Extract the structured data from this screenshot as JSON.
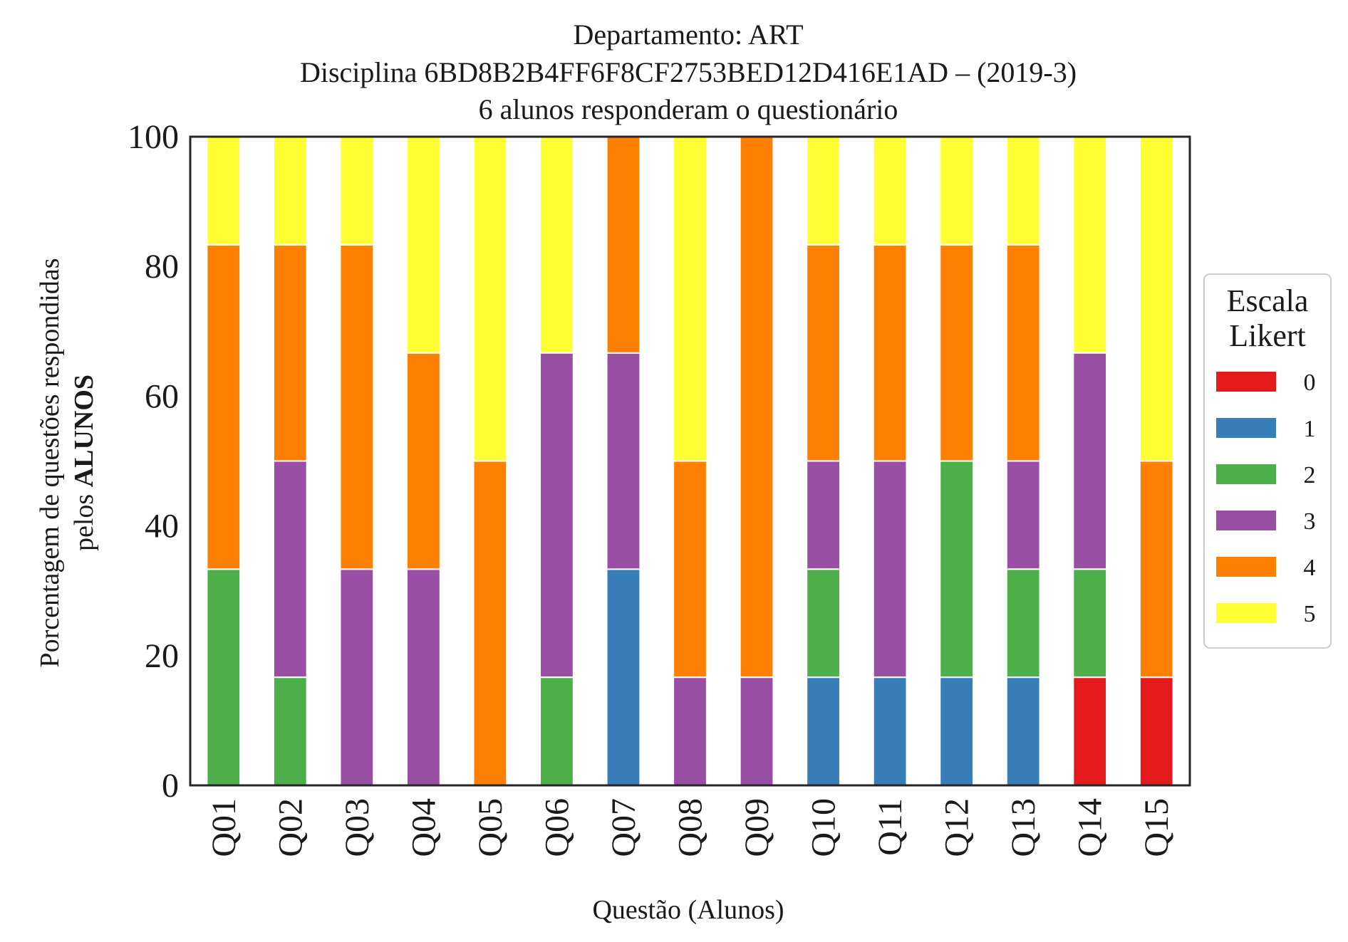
{
  "chart_data": {
    "type": "bar",
    "stacked": true,
    "title": "Departamento: ART",
    "subtitle_lines": [
      "Disciplina 6BD8B2B4FF6F8CF2753BED12D416E1AD – (2019-3)",
      "6 alunos responderam o questionário"
    ],
    "xlabel": "Questão (Alunos)",
    "ylabel_line1": "Porcentagem de questões respondidas",
    "ylabel_line2_prefix": "pelos ",
    "ylabel_line2_bold": "ALUNOS",
    "ylim": [
      0,
      100
    ],
    "yticks": [
      "0",
      "20",
      "40",
      "60",
      "80",
      "100"
    ],
    "categories": [
      "Q01",
      "Q02",
      "Q03",
      "Q04",
      "Q05",
      "Q06",
      "Q07",
      "Q08",
      "Q09",
      "Q10",
      "Q11",
      "Q12",
      "Q13",
      "Q14",
      "Q15"
    ],
    "legend": {
      "title_lines": [
        "Escala",
        "Likert"
      ],
      "placement": "right-outside"
    },
    "series": [
      {
        "name": "0",
        "color": "#e41a1c",
        "values": [
          0,
          0,
          0,
          0,
          0,
          0,
          0,
          0,
          0,
          0,
          0,
          0,
          0,
          16.67,
          16.67
        ]
      },
      {
        "name": "1",
        "color": "#377eb8",
        "values": [
          0,
          0,
          0,
          0,
          0,
          0,
          33.33,
          0,
          0,
          16.67,
          16.67,
          16.67,
          16.67,
          0,
          0
        ]
      },
      {
        "name": "2",
        "color": "#4daf4a",
        "values": [
          33.33,
          16.67,
          0,
          0,
          0,
          16.67,
          0,
          0,
          0,
          16.67,
          0,
          33.33,
          16.67,
          16.67,
          0
        ]
      },
      {
        "name": "3",
        "color": "#984ea3",
        "values": [
          0,
          33.33,
          33.33,
          33.33,
          0,
          50,
          33.33,
          16.67,
          16.67,
          16.67,
          33.33,
          0,
          16.67,
          33.33,
          0
        ]
      },
      {
        "name": "4",
        "color": "#ff7f00",
        "values": [
          50,
          33.33,
          50,
          33.33,
          50,
          0,
          33.33,
          33.33,
          83.33,
          33.33,
          33.33,
          33.33,
          33.33,
          0,
          33.33
        ]
      },
      {
        "name": "5",
        "color": "#ffff33",
        "values": [
          16.67,
          16.67,
          16.67,
          33.33,
          50,
          33.33,
          0,
          50,
          0,
          16.67,
          16.67,
          16.67,
          16.67,
          33.33,
          50
        ]
      }
    ]
  }
}
